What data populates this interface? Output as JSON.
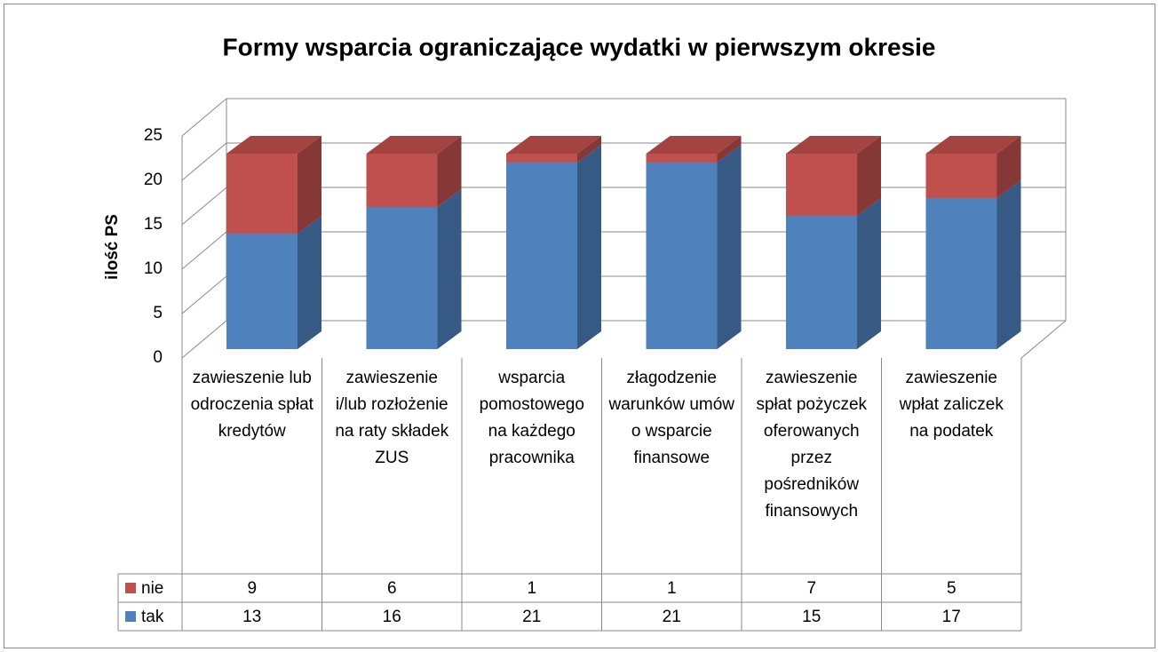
{
  "chart_data": {
    "type": "bar3d_stacked",
    "title": "Formy wsparcia ograniczające wydatki w pierwszym okresie",
    "y_label": "ilość PS",
    "categories": [
      "zawieszenie lub odroczenia spłat kredytów",
      "zawieszenie i/lub rozłożenie na raty składek ZUS",
      "wsparcia pomostowego na każdego pracownika",
      "złagodzenie warunków umów o wsparcie finansowe",
      "zawieszenie spłat pożyczek oferowanych przez pośredników finansowych",
      "zawieszenie wpłat zaliczek na podatek"
    ],
    "series": [
      {
        "name": "tak",
        "color": "#4f81bd",
        "values": [
          13,
          16,
          21,
          21,
          15,
          17
        ]
      },
      {
        "name": "nie",
        "color": "#c0504d",
        "values": [
          9,
          6,
          1,
          1,
          7,
          5
        ]
      }
    ],
    "ylim": [
      0,
      25
    ],
    "yticks": [
      0,
      5,
      10,
      15,
      20,
      25
    ],
    "grid": true,
    "data_table": true
  }
}
